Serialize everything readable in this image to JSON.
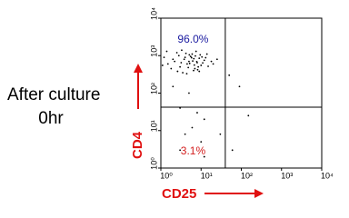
{
  "chart_data": {
    "type": "scatter",
    "side_text": [
      "After culture",
      "0hr"
    ],
    "xlabel": "CD25",
    "ylabel": "CD4",
    "xlog": true,
    "ylog": true,
    "xlim": [
      1,
      10000
    ],
    "ylim": [
      1,
      10000
    ],
    "xticks": [
      {
        "value": 1,
        "label": "10⁰"
      },
      {
        "value": 10,
        "label": "10¹"
      },
      {
        "value": 100,
        "label": "10²"
      },
      {
        "value": 1000,
        "label": "10³"
      },
      {
        "value": 10000,
        "label": "10⁴"
      }
    ],
    "yticks": [
      {
        "value": 1,
        "label": "10⁰"
      },
      {
        "value": 10,
        "label": "10¹"
      },
      {
        "value": 100,
        "label": "10²"
      },
      {
        "value": 1000,
        "label": "10³"
      },
      {
        "value": 10000,
        "label": "10⁴"
      }
    ],
    "quadrant_x": 40,
    "quadrant_y": 42,
    "quadrant_labels": [
      {
        "text": "96.0%",
        "value": 96.0,
        "color": "#1a1aa0"
      },
      {
        "text": "3.1%",
        "value": 3.1,
        "color": "#d42020"
      }
    ],
    "color": "#000000",
    "x": [
      1.5,
      2,
      3,
      4,
      5,
      6,
      7,
      8,
      9,
      10,
      12,
      2.5,
      3.5,
      4.5,
      5.5,
      6.5,
      7.5,
      8.5,
      1.2,
      1.8,
      2.2,
      2.8,
      3.2,
      3.8,
      4.2,
      4.8,
      5.2,
      5.8,
      6.2,
      6.8,
      7.2,
      7.8,
      8.2,
      9.5,
      11,
      13,
      15,
      18,
      1.1,
      1.4,
      2.6,
      3.3,
      4.4,
      5.1,
      6.6,
      9,
      10.5,
      14,
      20,
      25,
      2,
      5,
      3,
      8,
      6,
      4,
      10,
      12,
      30,
      50,
      150,
      60,
      3,
      12,
      90
    ],
    "y": [
      600,
      800,
      500,
      900,
      700,
      1100,
      450,
      650,
      850,
      550,
      750,
      1200,
      350,
      600,
      950,
      400,
      1300,
      500,
      900,
      450,
      700,
      1000,
      650,
      800,
      1150,
      480,
      620,
      880,
      720,
      560,
      980,
      690,
      420,
      1050,
      640,
      880,
      520,
      700,
      550,
      1300,
      380,
      1400,
      330,
      1050,
      830,
      380,
      920,
      1100,
      600,
      800,
      150,
      100,
      40,
      30,
      12,
      8,
      5,
      20,
      8,
      300,
      25,
      3,
      3,
      2,
      150
    ]
  }
}
